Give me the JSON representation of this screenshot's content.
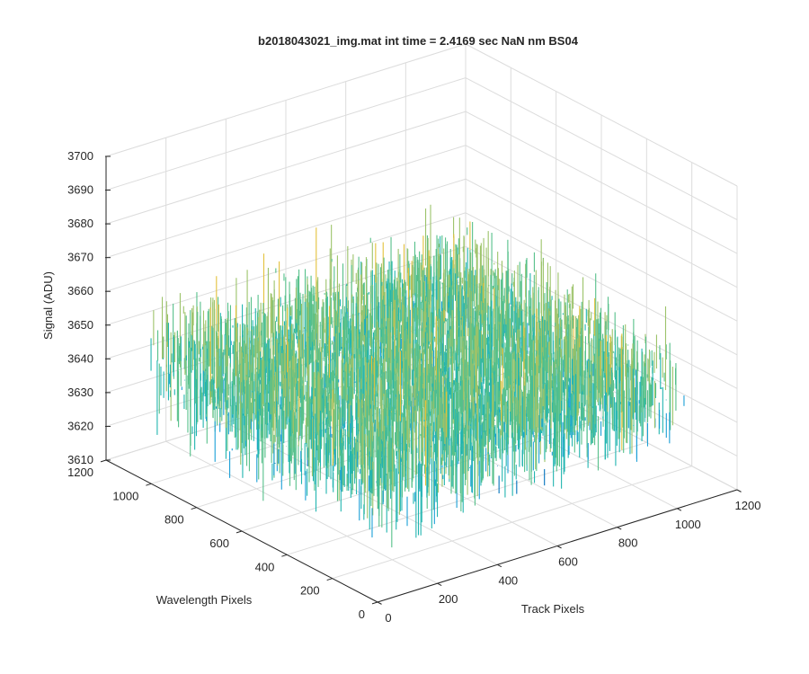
{
  "chart_data": {
    "type": "surface3d",
    "title": "b2018043021_img.mat int time = 2.4169 sec  NaN nm BS04",
    "xlabel": "Track Pixels",
    "ylabel": "Wavelength Pixels",
    "zlabel": "Signal (ADU)",
    "xlim": [
      0,
      1200
    ],
    "ylim": [
      0,
      1200
    ],
    "zlim": [
      3610,
      3700
    ],
    "xticks": [
      0,
      200,
      400,
      600,
      800,
      1000,
      1200
    ],
    "yticks": [
      0,
      200,
      400,
      600,
      800,
      1000,
      1200
    ],
    "zticks": [
      3610,
      3620,
      3630,
      3640,
      3650,
      3660,
      3670,
      3680,
      3690,
      3700
    ],
    "data_extent": {
      "track": [
        0,
        1024
      ],
      "wavelength": [
        0,
        1024
      ]
    },
    "signal_mean": 3645,
    "signal_noise_range": [
      3612,
      3695
    ],
    "grid": true,
    "colormap": [
      "#0072bd",
      "#1a9fd6",
      "#22b5b0",
      "#56c08a",
      "#9cc36a",
      "#e3c13c",
      "#f5d63a"
    ]
  }
}
